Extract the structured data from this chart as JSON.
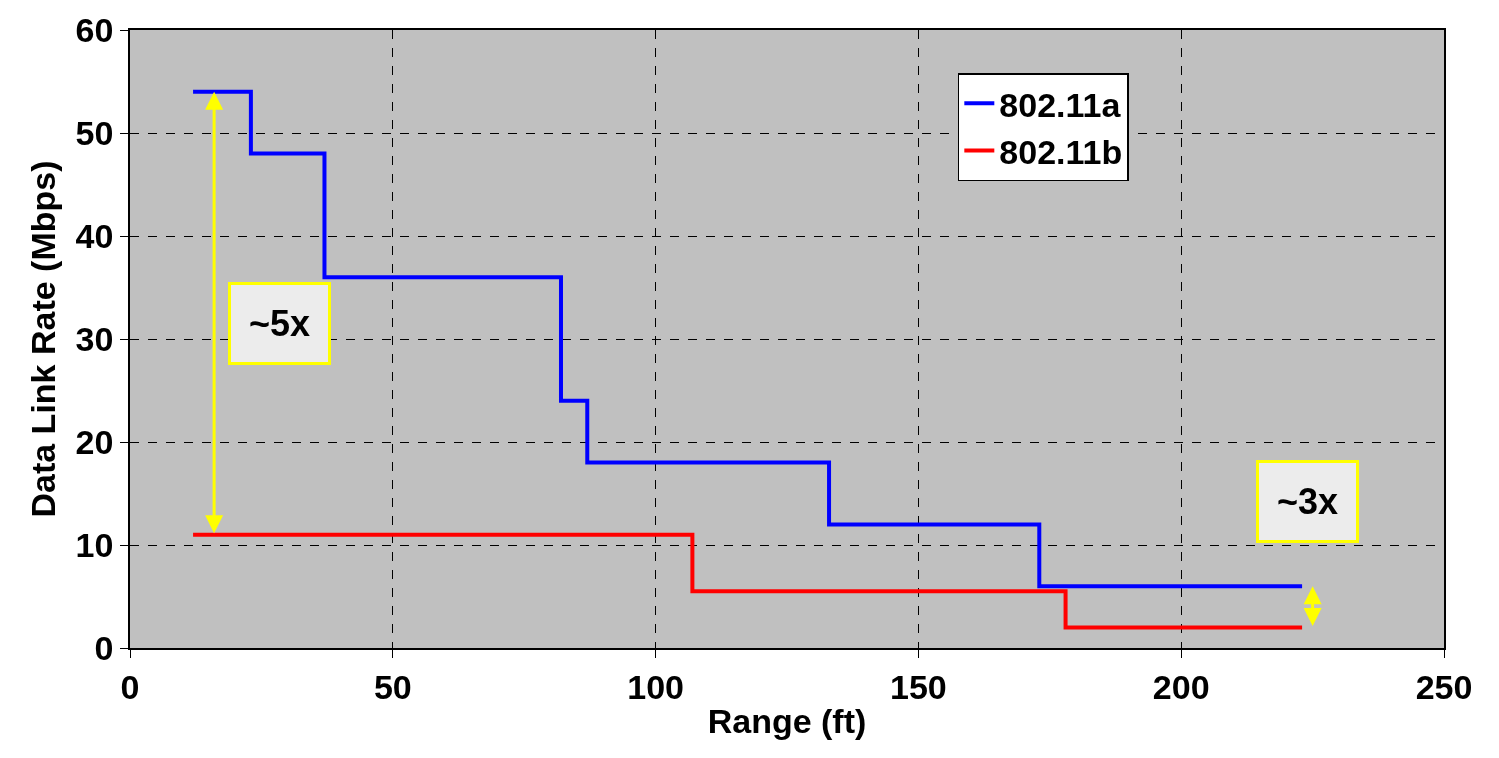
{
  "chart_data": {
    "type": "step",
    "xlabel": "Range (ft)",
    "ylabel": "Data Link Rate (Mbps)",
    "xlim": [
      0,
      250
    ],
    "xticks": [
      0,
      50,
      100,
      150,
      200,
      250
    ],
    "ylim": [
      0,
      60
    ],
    "yticks": [
      0,
      10,
      20,
      30,
      40,
      50,
      60
    ],
    "grid": true,
    "legend": "top right",
    "line_style": "solid",
    "marker": "none",
    "series": [
      {
        "name": "802.11a",
        "color": "#0000ff",
        "x": [
          12,
          23,
          37,
          82,
          87,
          133,
          173,
          223
        ],
        "values": [
          54,
          48,
          36,
          24,
          18,
          12,
          6,
          6
        ]
      },
      {
        "name": "802.11b",
        "color": "#ff0000",
        "x": [
          12,
          107,
          178,
          223
        ],
        "values": [
          11,
          5.5,
          2,
          2
        ]
      }
    ],
    "annotations": [
      "~5x",
      "~3x"
    ]
  }
}
